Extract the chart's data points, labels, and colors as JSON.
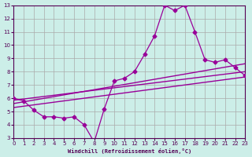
{
  "xlabel": "Windchill (Refroidissement éolien,°C)",
  "ylabel": "",
  "background_color": "#cceee8",
  "line_color": "#990099",
  "grid_color": "#aaaaaa",
  "x_data": [
    0,
    1,
    2,
    3,
    4,
    5,
    6,
    7,
    8,
    9,
    10,
    11,
    12,
    13,
    14,
    15,
    16,
    17,
    18,
    19,
    20,
    21,
    22,
    23
  ],
  "y_data": [
    6.0,
    5.8,
    5.1,
    4.6,
    4.6,
    4.5,
    4.6,
    4.0,
    2.7,
    5.2,
    7.3,
    7.5,
    8.0,
    9.3,
    10.7,
    13.0,
    12.6,
    13.0,
    11.0,
    8.9,
    8.7,
    8.9,
    8.3,
    7.7
  ],
  "trend1_x": [
    0,
    23
  ],
  "trend1_y": [
    5.85,
    8.0
  ],
  "trend2_x": [
    0,
    23
  ],
  "trend2_y": [
    5.6,
    8.6
  ],
  "trend3_x": [
    0,
    23
  ],
  "trend3_y": [
    5.3,
    7.6
  ],
  "ylim": [
    3,
    13
  ],
  "xlim": [
    0,
    23
  ],
  "yticks": [
    3,
    4,
    5,
    6,
    7,
    8,
    9,
    10,
    11,
    12,
    13
  ],
  "xticks": [
    0,
    1,
    2,
    3,
    4,
    5,
    6,
    7,
    8,
    9,
    10,
    11,
    12,
    13,
    14,
    15,
    16,
    17,
    18,
    19,
    20,
    21,
    22,
    23
  ]
}
